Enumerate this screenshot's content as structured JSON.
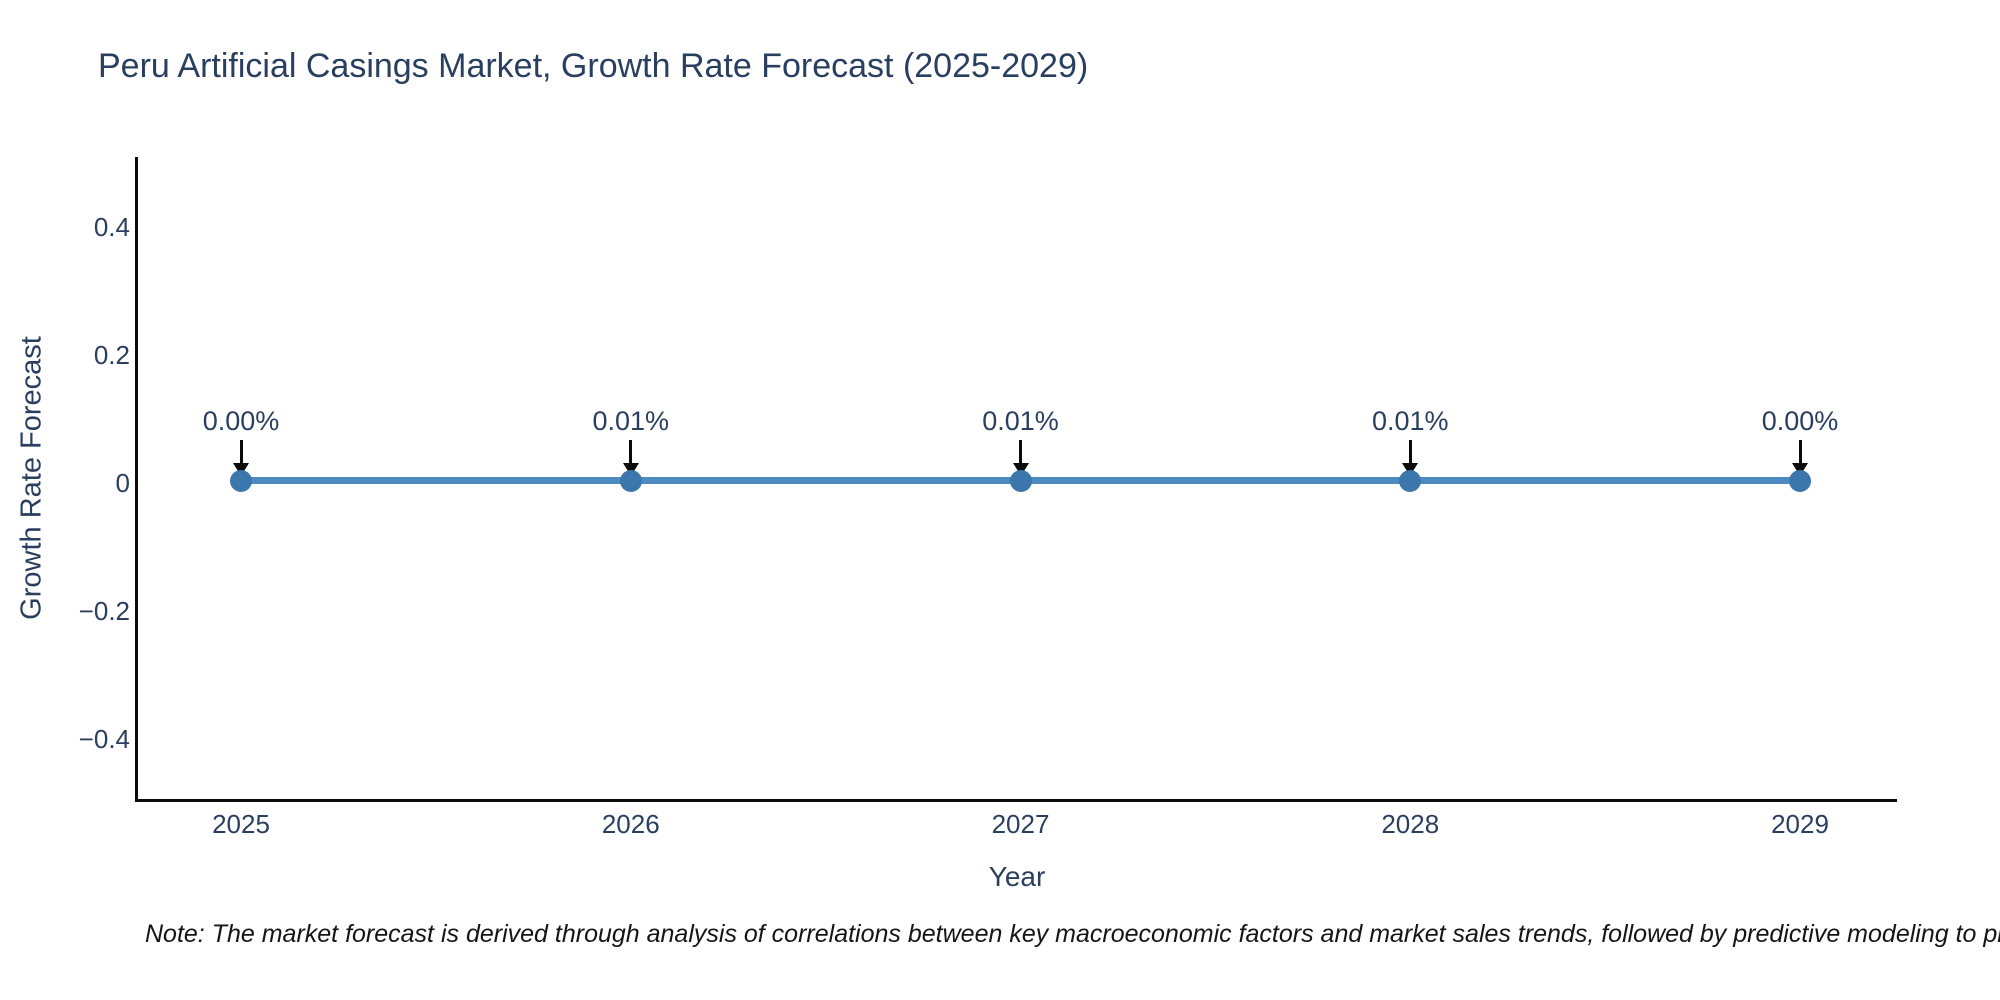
{
  "title": "Peru Artificial Casings Market, Growth Rate Forecast (2025-2029)",
  "note": "Note: The market forecast is derived through analysis of correlations between key macroeconomic factors and market sales trends, followed by predictive modeling to project future sales",
  "colors": {
    "title_text": "#2a3f5f",
    "axis_line": "#0b0b0b",
    "line": "#4e8ac2",
    "marker": "#3b76ad",
    "annotation_text": "#2a3f5f",
    "arrow": "#0b0b0b"
  },
  "chart_data": {
    "type": "line",
    "title": "Peru Artificial Casings Market, Growth Rate Forecast (2025-2029)",
    "xlabel": "Year",
    "ylabel": "Growth Rate Forecast",
    "x": [
      2025,
      2026,
      2027,
      2028,
      2029
    ],
    "xtick_labels": [
      "2025",
      "2026",
      "2027",
      "2028",
      "2029"
    ],
    "series": [
      {
        "name": "Growth Rate Forecast",
        "values": [
          0.0,
          0.0001,
          0.0001,
          0.0001,
          0.0
        ]
      }
    ],
    "annotations": [
      "0.00%",
      "0.01%",
      "0.01%",
      "0.01%",
      "0.00%"
    ],
    "yticks": [
      0.4,
      0.2,
      0,
      -0.2,
      -0.4
    ],
    "ytick_labels": [
      "0.4",
      "0.2",
      "0",
      "−0.2",
      "−0.4"
    ],
    "ylim": [
      -0.5,
      0.5
    ],
    "grid": false,
    "legend": false,
    "marker_style": "circle",
    "annotation_arrows": "down"
  }
}
